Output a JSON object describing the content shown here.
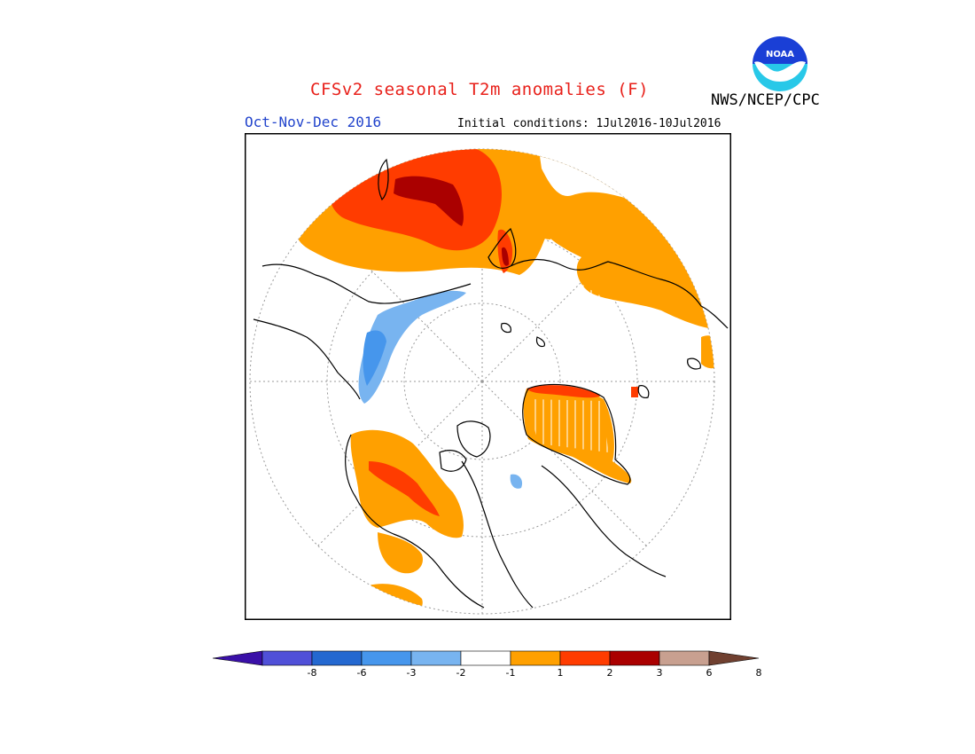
{
  "title": "CFSv2 seasonal T2m anomalies (F)",
  "season": "Oct-Nov-Dec 2016",
  "initial_conditions": "Initial conditions: 1Jul2016-10Jul2016",
  "agency": "NWS/NCEP/CPC",
  "logo_text": "NOAA",
  "colors": {
    "title": "#e8201a",
    "season": "#2244cc",
    "logo_blue": "#1a3fd6",
    "logo_cyan": "#28c8e8"
  },
  "legend": {
    "bins": [
      {
        "color": "#3a10a8"
      },
      {
        "color": "#5050d8"
      },
      {
        "color": "#2468d0"
      },
      {
        "color": "#4696ec"
      },
      {
        "color": "#78b4f0"
      },
      {
        "color": "#ffffff"
      },
      {
        "color": "#ffa000"
      },
      {
        "color": "#ff3c00"
      },
      {
        "color": "#aa0000"
      },
      {
        "color": "#c8a090"
      },
      {
        "color": "#704030"
      }
    ],
    "ticks": [
      "-8",
      "-6",
      "-3",
      "-2",
      "-1",
      "1",
      "2",
      "3",
      "6",
      "8"
    ]
  }
}
